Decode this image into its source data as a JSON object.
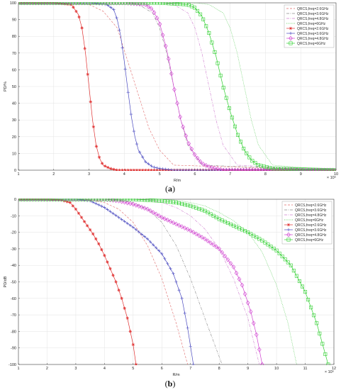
{
  "chart_data": [
    {
      "type": "line",
      "caption": "(a)",
      "xlabel": "R/m",
      "ylabel": "PD/%",
      "x_multiplier": "× 10⁵",
      "xlim": [
        1,
        10
      ],
      "ylim": [
        0,
        100
      ],
      "xticks": [
        1,
        2,
        3,
        4,
        5,
        6,
        7,
        8,
        9,
        10
      ],
      "yticks": [
        0,
        10,
        20,
        30,
        40,
        50,
        60,
        70,
        80,
        90,
        100
      ],
      "grid": true,
      "legend_position": "top-right",
      "series": [
        {
          "name": "QRCS,freq=2.6GHz",
          "style": "dashed",
          "marker": "none",
          "color": "#e06a6a",
          "x": [
            1.0,
            2.0,
            2.6,
            3.0,
            3.4,
            3.8,
            4.1,
            4.4,
            4.7,
            5.0,
            5.4,
            10.0
          ],
          "y": [
            100,
            100,
            100,
            99,
            95,
            85,
            65,
            45,
            25,
            12,
            3,
            0
          ]
        },
        {
          "name": "QRCS,freq=3.6GHz",
          "style": "dashdot",
          "marker": "none",
          "color": "#8a8a8a",
          "x": [
            1.0,
            3.0,
            4.0,
            4.4,
            4.8,
            5.0,
            5.2,
            5.4,
            5.6,
            5.8,
            6.2,
            10.0
          ],
          "y": [
            100,
            100,
            100,
            99,
            94,
            85,
            70,
            50,
            30,
            15,
            3,
            0
          ]
        },
        {
          "name": "QRCS,freq=4.8GHz",
          "style": "dashdot",
          "marker": "none",
          "color": "#d080d0",
          "x": [
            1.0,
            4.0,
            5.0,
            5.4,
            5.8,
            6.0,
            6.2,
            6.4,
            6.6,
            6.8,
            7.2,
            10.0
          ],
          "y": [
            100,
            100,
            100,
            99,
            94,
            85,
            70,
            50,
            30,
            15,
            3,
            0
          ]
        },
        {
          "name": "QRCS,freq=6GHz",
          "style": "dotted",
          "marker": "none",
          "color": "#4ec94e",
          "x": [
            1.0,
            5.0,
            6.0,
            6.4,
            6.8,
            7.0,
            7.2,
            7.4,
            7.6,
            7.8,
            8.2,
            10.0
          ],
          "y": [
            100,
            100,
            100,
            99,
            94,
            85,
            70,
            50,
            30,
            15,
            3,
            0
          ]
        },
        {
          "name": "QRCS,freq=2.6GHz",
          "style": "solid",
          "marker": "asterisk",
          "color": "#e03030",
          "x": [
            1.0,
            2.0,
            2.5,
            2.7,
            2.8,
            2.9,
            3.0,
            3.1,
            3.2,
            3.3,
            3.4,
            3.6,
            3.8,
            4.0,
            10.0
          ],
          "y": [
            100,
            100,
            99,
            93,
            85,
            70,
            50,
            30,
            15,
            7,
            3,
            1,
            0,
            0,
            0
          ]
        },
        {
          "name": "QRCS,freq=3.6GHz",
          "style": "solid",
          "marker": "plus",
          "color": "#4a4ac0",
          "x": [
            1.0,
            3.0,
            3.5,
            3.7,
            3.8,
            3.9,
            4.0,
            4.1,
            4.2,
            4.3,
            4.4,
            4.6,
            4.8,
            5.0,
            5.4,
            10.0
          ],
          "y": [
            100,
            100,
            99,
            96,
            90,
            80,
            65,
            48,
            32,
            20,
            12,
            5,
            2,
            1,
            0,
            0
          ]
        },
        {
          "name": "QRCS,freq=4.8GHz",
          "style": "solid",
          "marker": "diamond",
          "color": "#d040d0",
          "x": [
            1.0,
            4.0,
            4.6,
            4.8,
            5.0,
            5.2,
            5.3,
            5.4,
            5.5,
            5.6,
            5.8,
            6.0,
            6.2,
            6.4,
            6.8,
            10.0
          ],
          "y": [
            100,
            100,
            99,
            96,
            88,
            72,
            62,
            50,
            40,
            30,
            17,
            9,
            4,
            2,
            0,
            0
          ]
        },
        {
          "name": "QRCS,freq=6GHz",
          "style": "solid",
          "marker": "square",
          "color": "#30d030",
          "x": [
            1.0,
            5.0,
            5.8,
            6.0,
            6.2,
            6.4,
            6.6,
            6.7,
            6.8,
            7.0,
            7.2,
            7.4,
            7.6,
            7.8,
            8.2,
            10.0
          ],
          "y": [
            100,
            100,
            99,
            97,
            92,
            82,
            68,
            59,
            50,
            35,
            22,
            12,
            6,
            3,
            1,
            0
          ]
        }
      ]
    },
    {
      "type": "line",
      "caption": "(b)",
      "xlabel": "R/m",
      "ylabel": "PD/dB",
      "x_multiplier": "× 10⁵",
      "xlim": [
        1,
        12
      ],
      "ylim": [
        -100,
        0
      ],
      "xticks": [
        1,
        2,
        3,
        4,
        5,
        6,
        7,
        8,
        9,
        10,
        11,
        12
      ],
      "yticks": [
        0,
        -10,
        -20,
        -30,
        -40,
        -50,
        -60,
        -70,
        -80,
        -90,
        -100
      ],
      "grid": true,
      "legend_position": "top-right",
      "series": [
        {
          "name": "QRCS,freq=2.6GHz",
          "style": "dashed",
          "marker": "none",
          "color": "#e06a6a",
          "x": [
            1.0,
            3.0,
            3.5,
            4.0,
            4.5,
            5.0,
            5.5,
            6.0,
            6.5,
            6.9
          ],
          "y": [
            0,
            0,
            -0.5,
            -2,
            -6,
            -14,
            -28,
            -48,
            -75,
            -100
          ]
        },
        {
          "name": "QRCS,freq=3.6GHz",
          "style": "dashdot",
          "marker": "none",
          "color": "#8a8a8a",
          "x": [
            1.0,
            4.0,
            4.5,
            5.0,
            5.5,
            6.0,
            6.5,
            7.0,
            7.5,
            8.1
          ],
          "y": [
            0,
            0,
            -0.5,
            -2,
            -6,
            -14,
            -28,
            -48,
            -72,
            -100
          ]
        },
        {
          "name": "QRCS,freq=4.8GHz",
          "style": "dashdot",
          "marker": "none",
          "color": "#d080d0",
          "x": [
            1.0,
            5.0,
            5.5,
            6.0,
            6.5,
            7.0,
            7.5,
            8.0,
            8.5,
            9.0,
            9.4
          ],
          "y": [
            0,
            0,
            -0.5,
            -2,
            -5,
            -10,
            -18,
            -30,
            -48,
            -72,
            -100
          ]
        },
        {
          "name": "QRCS,freq=6GHz",
          "style": "dotted",
          "marker": "none",
          "color": "#4ec94e",
          "x": [
            1.0,
            6.0,
            6.5,
            7.0,
            7.5,
            8.0,
            8.5,
            9.0,
            9.5,
            10.0,
            10.4,
            10.7
          ],
          "y": [
            0,
            0,
            -0.5,
            -2,
            -4,
            -8,
            -13,
            -20,
            -32,
            -52,
            -75,
            -100
          ]
        },
        {
          "name": "QRCS,freq=2.6GHz",
          "style": "solid",
          "marker": "asterisk",
          "color": "#e03030",
          "x": [
            1.0,
            2.0,
            2.5,
            2.8,
            3.0,
            3.2,
            3.4,
            3.6,
            3.8,
            4.0,
            4.2,
            4.4,
            4.6,
            4.8,
            5.0,
            5.1
          ],
          "y": [
            0,
            0,
            -0.5,
            -2,
            -6,
            -11,
            -16,
            -21,
            -27,
            -34,
            -42,
            -50,
            -60,
            -72,
            -88,
            -100
          ]
        },
        {
          "name": "QRCS,freq=3.6GHz",
          "style": "solid",
          "marker": "plus",
          "color": "#4a4ac0",
          "x": [
            1.0,
            3.0,
            3.5,
            4.0,
            4.5,
            5.0,
            5.5,
            6.0,
            6.4,
            6.7,
            6.9,
            7.1
          ],
          "y": [
            0,
            0,
            -1,
            -5,
            -11,
            -17,
            -24,
            -33,
            -45,
            -60,
            -78,
            -100
          ]
        },
        {
          "name": "QRCS,freq=4.8GHz",
          "style": "solid",
          "marker": "diamond",
          "color": "#d040d0",
          "x": [
            1.0,
            4.0,
            4.5,
            5.0,
            5.5,
            6.0,
            6.5,
            7.0,
            7.5,
            8.0,
            8.5,
            8.8,
            9.1,
            9.3,
            9.5
          ],
          "y": [
            0,
            0,
            -1,
            -3,
            -6,
            -11,
            -15,
            -19,
            -24,
            -30,
            -41,
            -52,
            -68,
            -82,
            -100
          ]
        },
        {
          "name": "QRCS,freq=6GHz",
          "style": "solid",
          "marker": "square",
          "color": "#30d030",
          "x": [
            1.0,
            5.0,
            6.0,
            6.5,
            7.0,
            7.5,
            8.0,
            8.5,
            9.0,
            9.5,
            10.0,
            10.5,
            11.0,
            11.4,
            11.8
          ],
          "y": [
            0,
            0,
            -1,
            -2,
            -4,
            -7,
            -12,
            -16,
            -20,
            -25,
            -31,
            -40,
            -56,
            -75,
            -100
          ]
        }
      ]
    }
  ]
}
